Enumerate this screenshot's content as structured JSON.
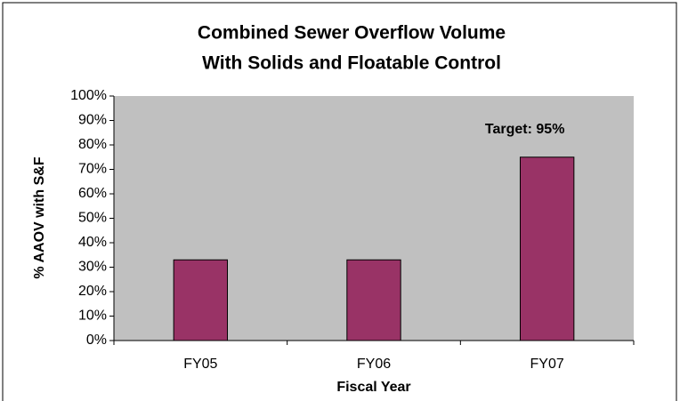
{
  "chart_data": {
    "type": "bar",
    "title": [
      "Combined Sewer Overflow Volume",
      "With Solids and Floatable Control"
    ],
    "x_label": "Fiscal Year",
    "y_label": "% AAOV with S&F",
    "categories": [
      "FY05",
      "FY06",
      "FY07"
    ],
    "values": [
      33,
      33,
      75
    ],
    "color": "#993366",
    "annotation": "Target: 95%",
    "annotation_color": "#ff0000",
    "plot_background": "#c0c0c0",
    "ylim": [
      0,
      100
    ],
    "yticks": [
      {
        "value": 0,
        "label": "0%"
      },
      {
        "value": 10,
        "label": "10%"
      },
      {
        "value": 20,
        "label": "20%"
      },
      {
        "value": 30,
        "label": "30%"
      },
      {
        "value": 40,
        "label": "40%"
      },
      {
        "value": 50,
        "label": "50%"
      },
      {
        "value": 60,
        "label": "60%"
      },
      {
        "value": 70,
        "label": "70%"
      },
      {
        "value": 80,
        "label": "80%"
      },
      {
        "value": 90,
        "label": "90%"
      },
      {
        "value": 100,
        "label": "100%"
      }
    ],
    "grid": false
  }
}
